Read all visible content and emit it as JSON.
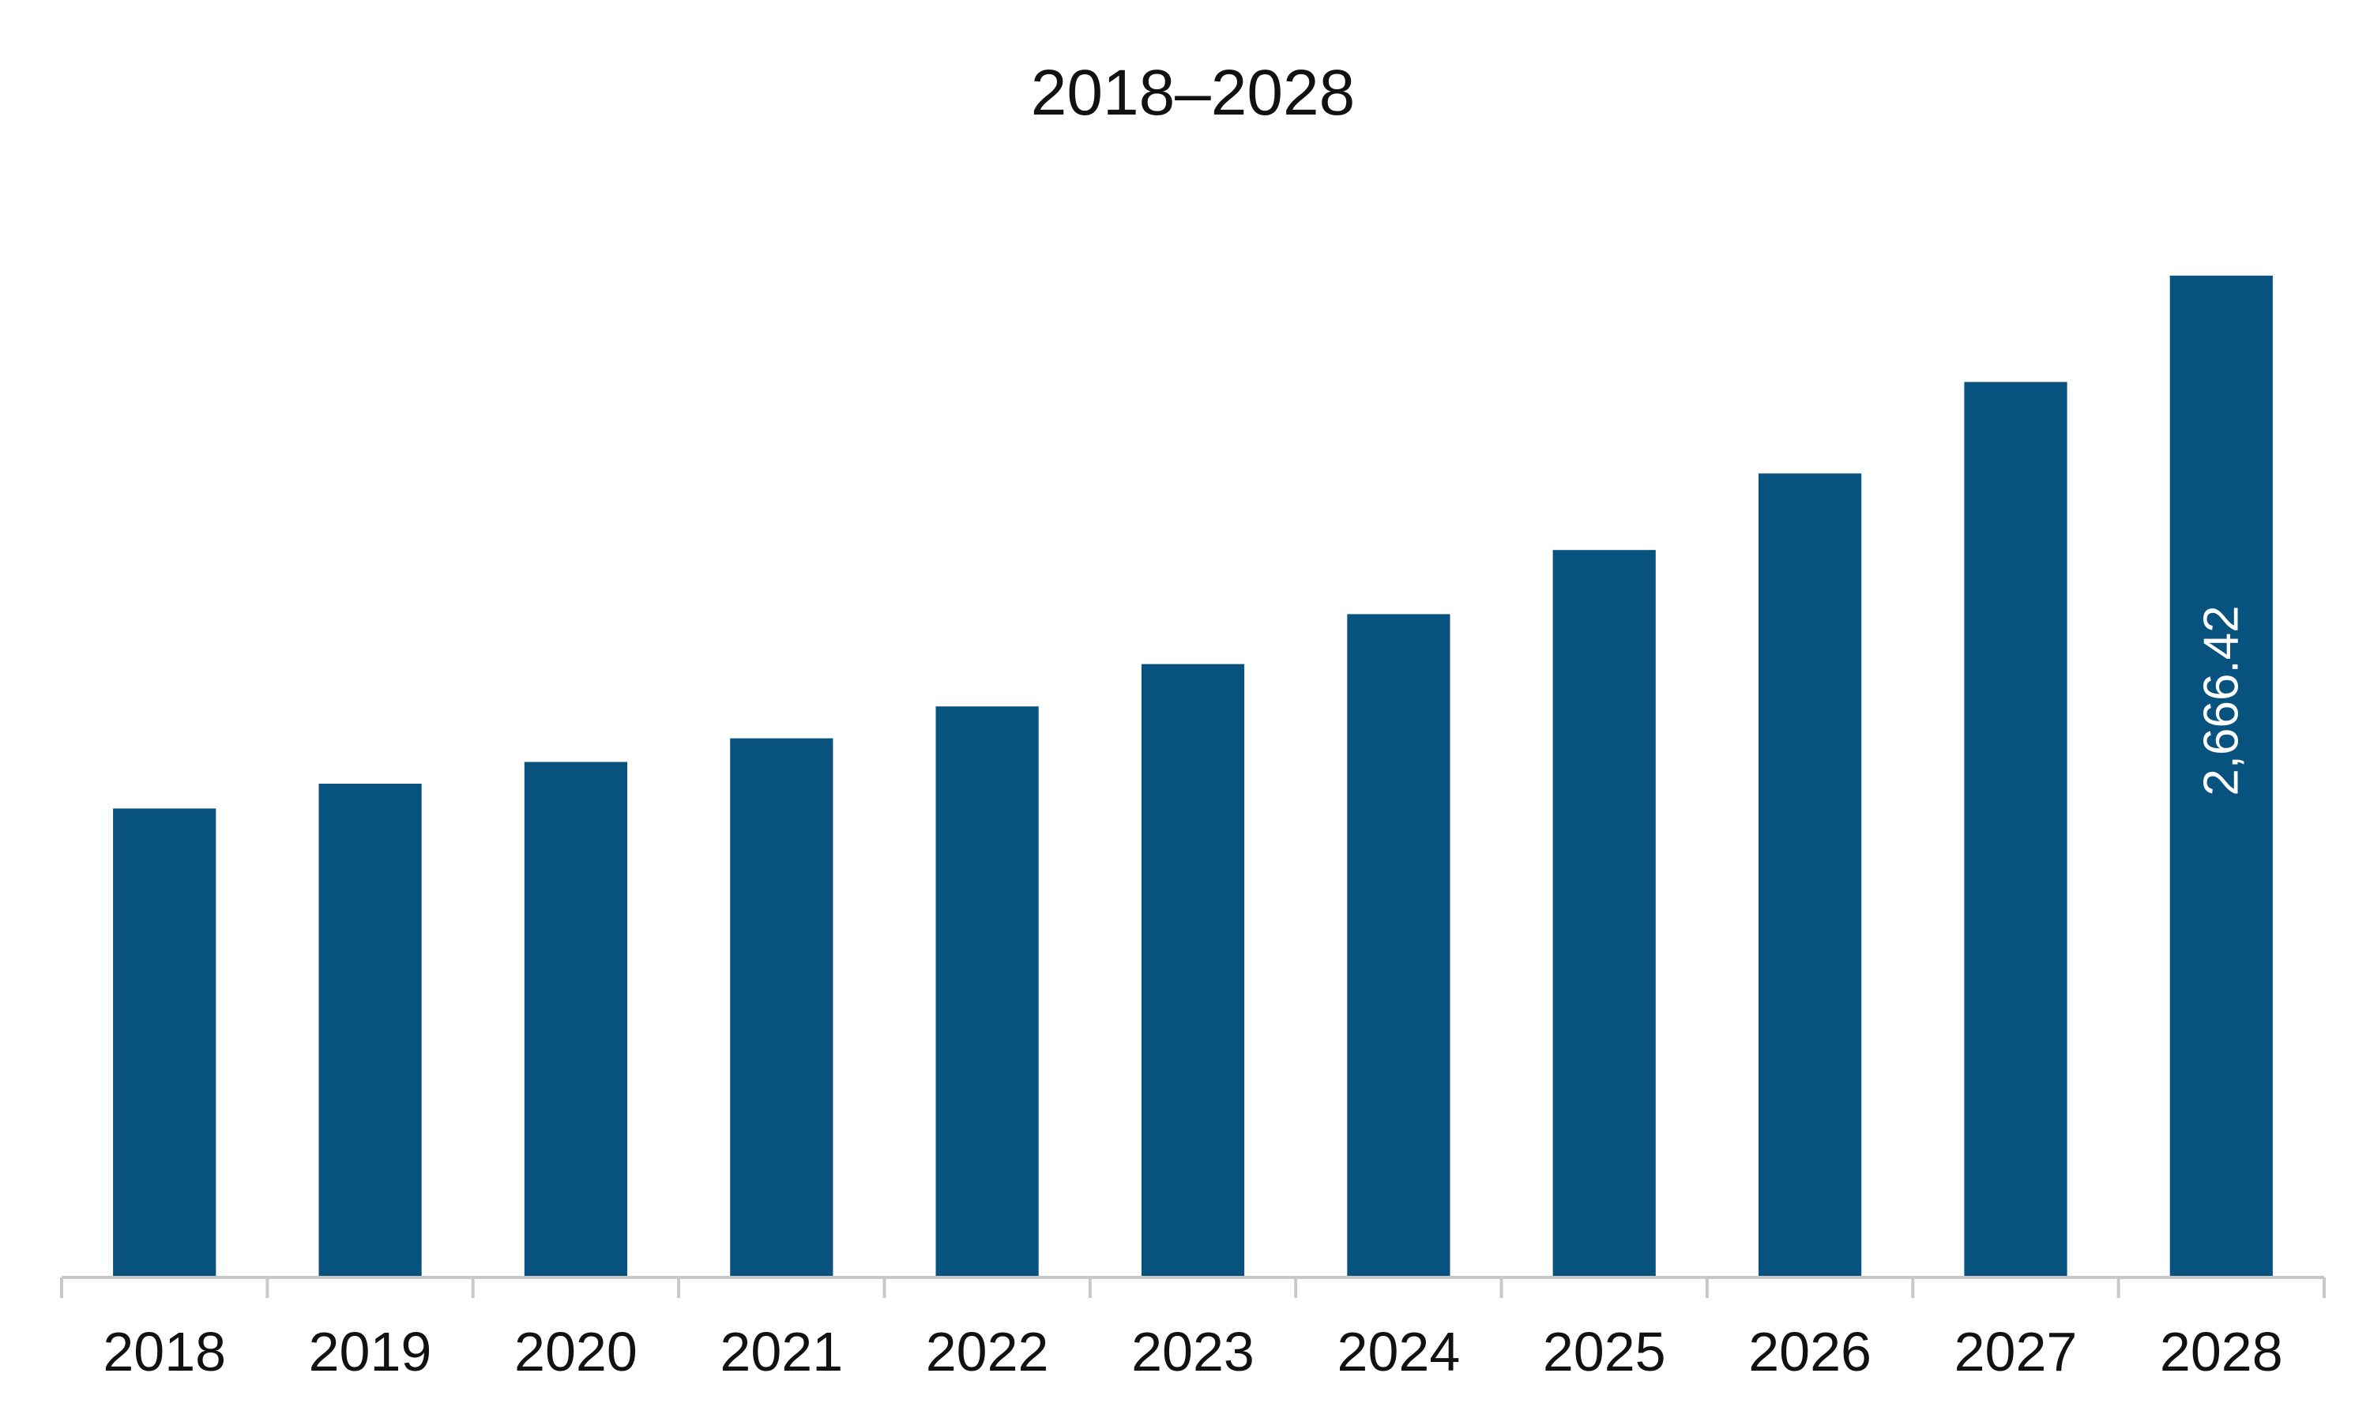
{
  "chart_data": {
    "type": "bar",
    "title": "2018–2028",
    "xlabel": "",
    "ylabel": "",
    "categories": [
      "2018",
      "2019",
      "2020",
      "2021",
      "2022",
      "2023",
      "2024",
      "2025",
      "2026",
      "2027",
      "2028"
    ],
    "values": [
      1246.0,
      1312.0,
      1370.0,
      1433.0,
      1518.0,
      1631.0,
      1764.0,
      1935.0,
      2139.0,
      2383.0,
      2666.42
    ],
    "data_labels": [
      "",
      "",
      "",
      "",
      "",
      "",
      "",
      "",
      "",
      "",
      "2,666.42"
    ],
    "ylim": [
      0,
      2900
    ],
    "grid": false,
    "legend": "none",
    "bar_color": "#08527f",
    "axis_color": "#c8c8c8",
    "text_color": "#111111",
    "label_color": "#ffffff"
  }
}
